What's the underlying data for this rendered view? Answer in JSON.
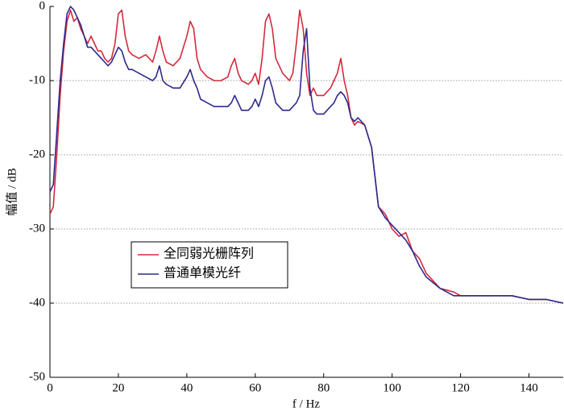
{
  "chart_data": {
    "type": "line",
    "xlabel": "f / Hz",
    "ylabel": "幅值 / dB",
    "xlim": [
      0,
      150
    ],
    "ylim": [
      -50,
      0
    ],
    "xticks": [
      0,
      20,
      40,
      60,
      80,
      100,
      120,
      140
    ],
    "yticks": [
      -50,
      -40,
      -30,
      -20,
      -10,
      0
    ],
    "grid": true,
    "legend": "lower left",
    "x": [
      0,
      1,
      2,
      3,
      4,
      5,
      6,
      7,
      8,
      9,
      10,
      11,
      12,
      13,
      14,
      15,
      16,
      17,
      18,
      19,
      20,
      21,
      22,
      23,
      24,
      26,
      28,
      30,
      31,
      32,
      33,
      34,
      36,
      38,
      40,
      41,
      42,
      43,
      44,
      46,
      48,
      50,
      52,
      53,
      54,
      55,
      56,
      58,
      59,
      60,
      61,
      62,
      63,
      64,
      65,
      66,
      68,
      70,
      71,
      72,
      73,
      74,
      75,
      76,
      77,
      78,
      80,
      82,
      83,
      84,
      85,
      86,
      87,
      88,
      89,
      90,
      92,
      94,
      96,
      98,
      100,
      102,
      104,
      106,
      108,
      110,
      114,
      118,
      120,
      125,
      130,
      135,
      140,
      145,
      150
    ],
    "series": [
      {
        "name": "全同弱光栅阵列",
        "color": "#d42a3c",
        "values": [
          -28,
          -27,
          -20,
          -12,
          -6,
          -2,
          -0.5,
          -2,
          -1.5,
          -3,
          -4,
          -5,
          -4,
          -5,
          -6,
          -6,
          -7,
          -7.5,
          -7,
          -5,
          -1,
          -0.5,
          -4,
          -6,
          -6.5,
          -7,
          -6.5,
          -7.5,
          -6,
          -4,
          -6,
          -7.5,
          -8,
          -7,
          -4,
          -2,
          -3,
          -7,
          -8.5,
          -9.5,
          -10,
          -10,
          -9.5,
          -8,
          -7,
          -9,
          -10,
          -10.5,
          -10,
          -9,
          -10.5,
          -7,
          -2,
          -1,
          -3,
          -7,
          -9,
          -10,
          -9,
          -5,
          -0.5,
          -3,
          -9,
          -12,
          -11,
          -12,
          -12,
          -11,
          -10,
          -9,
          -7,
          -10,
          -12,
          -15,
          -16,
          -15.5,
          -16,
          -19,
          -27,
          -28,
          -30,
          -31,
          -30.5,
          -33,
          -34,
          -36,
          -38,
          -38.5,
          -39,
          -39,
          -39,
          -39,
          -39.5,
          -39.5,
          -40
        ]
      },
      {
        "name": "普通单模光纤",
        "color": "#2e2a8c",
        "values": [
          -25,
          -24,
          -17,
          -10,
          -5,
          -1,
          0,
          -0.5,
          -1.5,
          -2.5,
          -4,
          -5.5,
          -5.5,
          -6,
          -6.5,
          -7,
          -7.5,
          -8,
          -7.5,
          -6.5,
          -5.5,
          -6,
          -7.5,
          -8.5,
          -8.5,
          -9,
          -9.5,
          -10,
          -9.5,
          -8,
          -10,
          -10.5,
          -11,
          -11,
          -9.5,
          -8.5,
          -10,
          -11,
          -12.5,
          -13,
          -13.5,
          -13.5,
          -13.5,
          -13,
          -12,
          -13,
          -14,
          -14,
          -13.5,
          -12.5,
          -13.5,
          -12,
          -10,
          -9.5,
          -11,
          -13,
          -14,
          -14,
          -13.5,
          -13,
          -12,
          -6,
          -3,
          -11,
          -14,
          -14.5,
          -14.5,
          -13.5,
          -13,
          -12,
          -11.5,
          -12,
          -13,
          -15,
          -15.5,
          -15,
          -16,
          -19,
          -27,
          -28.5,
          -29.5,
          -30.5,
          -31.5,
          -33,
          -35,
          -36.5,
          -38,
          -39,
          -39,
          -39,
          -39,
          -39,
          -39.5,
          -39.5,
          -40
        ]
      }
    ]
  }
}
